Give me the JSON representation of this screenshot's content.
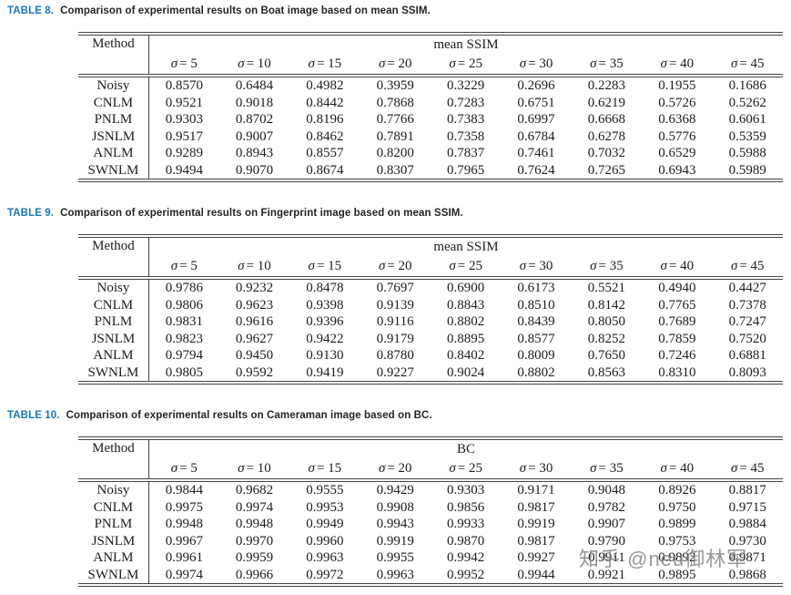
{
  "page": {
    "background": "#ffffff"
  },
  "colors": {
    "caption_label": "#1878b8",
    "caption_text": "#242424",
    "table_text": "#1d1d1d",
    "rule": "#444444",
    "watermark": "#7e7e7e"
  },
  "watermark": {
    "text": "知乎 @neu御林军"
  },
  "tables": [
    {
      "caption_label": "TABLE 8.",
      "caption_text": "Comparison of experimental results on Boat image based on mean SSIM.",
      "method_header": "Method",
      "group_header": "mean SSIM",
      "sigma_headers": [
        "σ = 5",
        "σ = 10",
        "σ = 15",
        "σ = 20",
        "σ = 25",
        "σ = 30",
        "σ = 35",
        "σ = 40",
        "σ = 45"
      ],
      "rows": [
        {
          "method": "Noisy",
          "values": [
            "0.8570",
            "0.6484",
            "0.4982",
            "0.3959",
            "0.3229",
            "0.2696",
            "0.2283",
            "0.1955",
            "0.1686"
          ]
        },
        {
          "method": "CNLM",
          "values": [
            "0.9521",
            "0.9018",
            "0.8442",
            "0.7868",
            "0.7283",
            "0.6751",
            "0.6219",
            "0.5726",
            "0.5262"
          ]
        },
        {
          "method": "PNLM",
          "values": [
            "0.9303",
            "0.8702",
            "0.8196",
            "0.7766",
            "0.7383",
            "0.6997",
            "0.6668",
            "0.6368",
            "0.6061"
          ]
        },
        {
          "method": "JSNLM",
          "values": [
            "0.9517",
            "0.9007",
            "0.8462",
            "0.7891",
            "0.7358",
            "0.6784",
            "0.6278",
            "0.5776",
            "0.5359"
          ]
        },
        {
          "method": "ANLM",
          "values": [
            "0.9289",
            "0.8943",
            "0.8557",
            "0.8200",
            "0.7837",
            "0.7461",
            "0.7032",
            "0.6529",
            "0.5988"
          ]
        },
        {
          "method": "SWNLM",
          "values": [
            "0.9494",
            "0.9070",
            "0.8674",
            "0.8307",
            "0.7965",
            "0.7624",
            "0.7265",
            "0.6943",
            "0.5989"
          ]
        }
      ]
    },
    {
      "caption_label": "TABLE 9.",
      "caption_text": "Comparison of experimental results on Fingerprint image based on mean SSIM.",
      "method_header": "Method",
      "group_header": "mean SSIM",
      "sigma_headers": [
        "σ = 5",
        "σ = 10",
        "σ = 15",
        "σ = 20",
        "σ = 25",
        "σ = 30",
        "σ = 35",
        "σ = 40",
        "σ = 45"
      ],
      "rows": [
        {
          "method": "Noisy",
          "values": [
            "0.9786",
            "0.9232",
            "0.8478",
            "0.7697",
            "0.6900",
            "0.6173",
            "0.5521",
            "0.4940",
            "0.4427"
          ]
        },
        {
          "method": "CNLM",
          "values": [
            "0.9806",
            "0.9623",
            "0.9398",
            "0.9139",
            "0.8843",
            "0.8510",
            "0.8142",
            "0.7765",
            "0.7378"
          ]
        },
        {
          "method": "PNLM",
          "values": [
            "0.9831",
            "0.9616",
            "0.9396",
            "0.9116",
            "0.8802",
            "0.8439",
            "0.8050",
            "0.7689",
            "0.7247"
          ]
        },
        {
          "method": "JSNLM",
          "values": [
            "0.9823",
            "0.9627",
            "0.9422",
            "0.9179",
            "0.8895",
            "0.8577",
            "0.8252",
            "0.7859",
            "0.7520"
          ]
        },
        {
          "method": "ANLM",
          "values": [
            "0.9794",
            "0.9450",
            "0.9130",
            "0.8780",
            "0.8402",
            "0.8009",
            "0.7650",
            "0.7246",
            "0.6881"
          ]
        },
        {
          "method": "SWNLM",
          "values": [
            "0.9805",
            "0.9592",
            "0.9419",
            "0.9227",
            "0.9024",
            "0.8802",
            "0.8563",
            "0.8310",
            "0.8093"
          ]
        }
      ]
    },
    {
      "caption_label": "TABLE 10.",
      "caption_text": "Comparison of experimental results on Cameraman image based on BC.",
      "method_header": "Method",
      "group_header": "BC",
      "sigma_headers": [
        "σ = 5",
        "σ = 10",
        "σ = 15",
        "σ = 20",
        "σ = 25",
        "σ = 30",
        "σ = 35",
        "σ = 40",
        "σ = 45"
      ],
      "rows": [
        {
          "method": "Noisy",
          "values": [
            "0.9844",
            "0.9682",
            "0.9555",
            "0.9429",
            "0.9303",
            "0.9171",
            "0.9048",
            "0.8926",
            "0.8817"
          ]
        },
        {
          "method": "CNLM",
          "values": [
            "0.9975",
            "0.9974",
            "0.9953",
            "0.9908",
            "0.9856",
            "0.9817",
            "0.9782",
            "0.9750",
            "0.9715"
          ]
        },
        {
          "method": "PNLM",
          "values": [
            "0.9948",
            "0.9948",
            "0.9949",
            "0.9943",
            "0.9933",
            "0.9919",
            "0.9907",
            "0.9899",
            "0.9884"
          ]
        },
        {
          "method": "JSNLM",
          "values": [
            "0.9967",
            "0.9970",
            "0.9960",
            "0.9919",
            "0.9870",
            "0.9817",
            "0.9790",
            "0.9753",
            "0.9730"
          ]
        },
        {
          "method": "ANLM",
          "values": [
            "0.9961",
            "0.9959",
            "0.9963",
            "0.9955",
            "0.9942",
            "0.9927",
            "0.9911",
            "0.9892",
            "0.9871"
          ]
        },
        {
          "method": "SWNLM",
          "values": [
            "0.9974",
            "0.9966",
            "0.9972",
            "0.9963",
            "0.9952",
            "0.9944",
            "0.9921",
            "0.9895",
            "0.9868"
          ]
        }
      ]
    }
  ]
}
